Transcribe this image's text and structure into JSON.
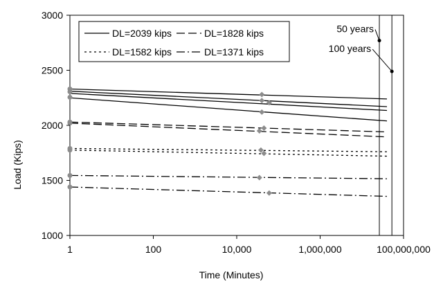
{
  "chart_data": {
    "type": "line",
    "xlabel": "Time (Minutes)",
    "ylabel": "Load (Kips)",
    "x_scale": "log",
    "xlim": [
      1,
      100000000
    ],
    "ylim": [
      1000,
      3000
    ],
    "x_ticks": [
      1,
      100,
      10000,
      1000000,
      100000000
    ],
    "x_tick_labels": [
      "1",
      "100",
      "10,000",
      "1,000,000",
      "100,000,000"
    ],
    "y_ticks": [
      1000,
      1500,
      2000,
      2500,
      3000
    ],
    "y_tick_labels": [
      "1000",
      "1500",
      "2000",
      "2500",
      "3000"
    ],
    "grid": false,
    "legend_position": "top-left",
    "series": [
      {
        "name": "DL=2039 kips",
        "dash": "solid",
        "lines": [
          {
            "x": [
              1,
              40000000
            ],
            "y": [
              2330,
              2240
            ]
          },
          {
            "x": [
              1,
              40000000
            ],
            "y": [
              2310,
              2170
            ]
          },
          {
            "x": [
              1,
              40000000
            ],
            "y": [
              2290,
              2135
            ]
          },
          {
            "x": [
              1,
              40000000
            ],
            "y": [
              2250,
              2040
            ]
          }
        ],
        "markers": [
          {
            "x": 1,
            "y": 2330
          },
          {
            "x": 1,
            "y": 2305
          },
          {
            "x": 1,
            "y": 2255
          },
          {
            "x": 40000,
            "y": 2280
          },
          {
            "x": 40000,
            "y": 2225
          },
          {
            "x": 60000,
            "y": 2205
          },
          {
            "x": 40000,
            "y": 2120
          }
        ]
      },
      {
        "name": "DL=1828 kips",
        "dash": "dash",
        "lines": [
          {
            "x": [
              1,
              40000000
            ],
            "y": [
              2030,
              1940
            ]
          },
          {
            "x": [
              1,
              40000000
            ],
            "y": [
              2020,
              1895
            ]
          }
        ],
        "markers": [
          {
            "x": 1,
            "y": 2030
          },
          {
            "x": 1,
            "y": 2020
          },
          {
            "x": 45000,
            "y": 1975
          },
          {
            "x": 35000,
            "y": 1950
          }
        ]
      },
      {
        "name": "DL=1582 kips",
        "dash": "dot",
        "lines": [
          {
            "x": [
              1,
              40000000
            ],
            "y": [
              1790,
              1760
            ]
          },
          {
            "x": [
              1,
              40000000
            ],
            "y": [
              1775,
              1720
            ]
          }
        ],
        "markers": [
          {
            "x": 1,
            "y": 1790
          },
          {
            "x": 1,
            "y": 1775
          },
          {
            "x": 38000,
            "y": 1775
          },
          {
            "x": 45000,
            "y": 1745
          }
        ]
      },
      {
        "name": "DL=1371 kips",
        "dash": "dashdot",
        "lines": [
          {
            "x": [
              1,
              40000000
            ],
            "y": [
              1545,
              1515
            ]
          },
          {
            "x": [
              1,
              40000000
            ],
            "y": [
              1440,
              1355
            ]
          }
        ],
        "markers": [
          {
            "x": 1,
            "y": 1545
          },
          {
            "x": 1,
            "y": 1440
          },
          {
            "x": 35000,
            "y": 1525
          },
          {
            "x": 60000,
            "y": 1385
          }
        ]
      }
    ],
    "reference_lines": [
      {
        "label": "50 years",
        "x": 26280000,
        "marker_y": 2770
      },
      {
        "label": "100 years",
        "x": 52560000,
        "marker_y": 2490
      }
    ]
  }
}
